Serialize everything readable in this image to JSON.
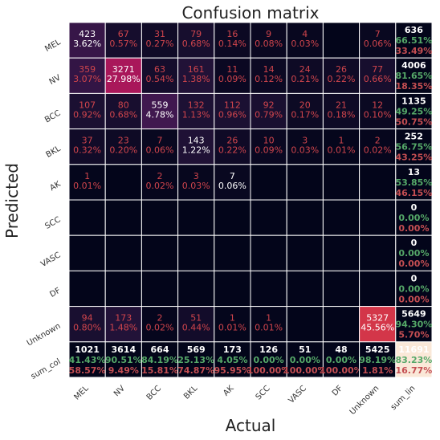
{
  "chart_data": {
    "type": "heatmap",
    "title": "Confusion matrix",
    "xlabel": "Actual",
    "ylabel": "Predicted",
    "x_tick_labels": [
      "MEL",
      "NV",
      "BCC",
      "BKL",
      "AK",
      "SCC",
      "VASC",
      "DF",
      "Unknown",
      "sum_lin"
    ],
    "y_tick_labels": [
      "MEL",
      "NV",
      "BCC",
      "BKL",
      "AK",
      "SCC",
      "VASC",
      "DF",
      "Unknown",
      "sum_col"
    ],
    "class_labels": [
      "MEL",
      "NV",
      "BCC",
      "BKL",
      "AK",
      "SCC",
      "VASC",
      "DF",
      "Unknown"
    ],
    "counts": [
      [
        423,
        67,
        31,
        79,
        16,
        9,
        4,
        null,
        7
      ],
      [
        359,
        3271,
        63,
        161,
        11,
        14,
        24,
        26,
        77
      ],
      [
        107,
        80,
        559,
        132,
        112,
        92,
        20,
        21,
        12
      ],
      [
        37,
        23,
        7,
        143,
        26,
        10,
        3,
        1,
        2
      ],
      [
        1,
        null,
        2,
        3,
        7,
        null,
        null,
        null,
        null
      ],
      [
        null,
        null,
        null,
        null,
        null,
        null,
        null,
        null,
        null
      ],
      [
        null,
        null,
        null,
        null,
        null,
        null,
        null,
        null,
        null
      ],
      [
        null,
        null,
        null,
        null,
        null,
        null,
        null,
        null,
        null
      ],
      [
        94,
        173,
        2,
        51,
        1,
        1,
        null,
        null,
        5327
      ]
    ],
    "percents": [
      [
        "3.62%",
        "0.57%",
        "0.27%",
        "0.68%",
        "0.14%",
        "0.08%",
        "0.03%",
        null,
        "0.06%"
      ],
      [
        "3.07%",
        "27.98%",
        "0.54%",
        "1.38%",
        "0.09%",
        "0.12%",
        "0.21%",
        "0.22%",
        "0.66%"
      ],
      [
        "0.92%",
        "0.68%",
        "4.78%",
        "1.13%",
        "0.96%",
        "0.79%",
        "0.17%",
        "0.18%",
        "0.10%"
      ],
      [
        "0.32%",
        "0.20%",
        "0.06%",
        "1.22%",
        "0.22%",
        "0.09%",
        "0.03%",
        "0.01%",
        "0.02%"
      ],
      [
        "0.01%",
        null,
        "0.02%",
        "0.03%",
        "0.06%",
        null,
        null,
        null,
        null
      ],
      [
        null,
        null,
        null,
        null,
        null,
        null,
        null,
        null,
        null
      ],
      [
        null,
        null,
        null,
        null,
        null,
        null,
        null,
        null,
        null
      ],
      [
        null,
        null,
        null,
        null,
        null,
        null,
        null,
        null,
        null
      ],
      [
        "0.80%",
        "1.48%",
        "0.02%",
        "0.44%",
        "0.01%",
        "0.01%",
        null,
        null,
        "45.56%"
      ]
    ],
    "row_summary": [
      {
        "total": "636",
        "precision": "66.51%",
        "error": "33.49%"
      },
      {
        "total": "4006",
        "precision": "81.65%",
        "error": "18.35%"
      },
      {
        "total": "1135",
        "precision": "49.25%",
        "error": "50.75%"
      },
      {
        "total": "252",
        "precision": "56.75%",
        "error": "43.25%"
      },
      {
        "total": "13",
        "precision": "53.85%",
        "error": "46.15%"
      },
      {
        "total": "0",
        "precision": "0.00%",
        "error": "0.00%"
      },
      {
        "total": "0",
        "precision": "0.00%",
        "error": "0.00%"
      },
      {
        "total": "0",
        "precision": "0.00%",
        "error": "0.00%"
      },
      {
        "total": "5649",
        "precision": "94.30%",
        "error": "5.70%"
      }
    ],
    "col_summary": [
      {
        "total": "1021",
        "recall": "41.43%",
        "error": "58.57%"
      },
      {
        "total": "3614",
        "recall": "90.51%",
        "error": "9.49%"
      },
      {
        "total": "664",
        "recall": "84.19%",
        "error": "15.81%"
      },
      {
        "total": "569",
        "recall": "25.13%",
        "error": "74.87%"
      },
      {
        "total": "173",
        "recall": "4.05%",
        "error": "95.95%"
      },
      {
        "total": "126",
        "recall": "0.00%",
        "error": "100.00%"
      },
      {
        "total": "51",
        "recall": "0.00%",
        "error": "100.00%"
      },
      {
        "total": "48",
        "recall": "0.00%",
        "error": "100.00%"
      },
      {
        "total": "5425",
        "recall": "98.19%",
        "error": "1.81%"
      }
    ],
    "overall": {
      "total": "11691",
      "accuracy": "83.23%",
      "error": "16.77%"
    },
    "vmax": 5327,
    "colors": {
      "empty": "#03051a",
      "colormap": [
        "#03051a",
        "#1e1135",
        "#40184f",
        "#641a60",
        "#8a1a62",
        "#ae1759",
        "#cf2e4c",
        "#e5573e",
        "#f08b5e",
        "#f6ba97",
        "#faebdd"
      ],
      "text_dark_bg": "#ffffff",
      "text_off_diagonal": "#d0454c",
      "percent_good": "#55a868",
      "percent_bad": "#c44e52",
      "corner_cell": "#fae8d8",
      "grid_lines": "#ffffff"
    }
  }
}
